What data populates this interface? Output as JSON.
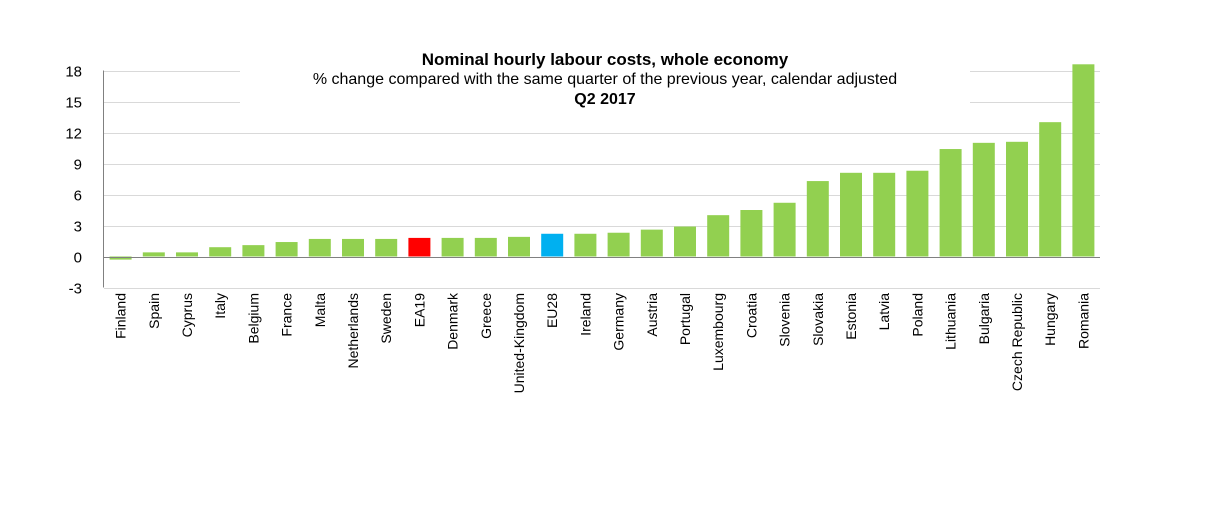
{
  "chart_data": {
    "type": "bar",
    "title": "Nominal hourly labour costs, whole economy",
    "subtitle": "% change compared with the same quarter of the previous year, calendar adjusted",
    "period": "Q2 2017",
    "xlabel": "",
    "ylabel": "",
    "ylim": [
      -3,
      18
    ],
    "yticks": [
      "18",
      "15",
      "12",
      "9",
      "6",
      "3",
      "0",
      "-3"
    ],
    "grid": true,
    "legend": "none",
    "categories": [
      "Finland",
      "Spain",
      "Cyprus",
      "Italy",
      "Belgium",
      "France",
      "Malta",
      "Netherlands",
      "Sweden",
      "EA19",
      "Denmark",
      "Greece",
      "United-Kingdom",
      "EU28",
      "Ireland",
      "Germany",
      "Austria",
      "Portugal",
      "Luxembourg",
      "Croatia",
      "Slovenia",
      "Slovakia",
      "Estonia",
      "Latvia",
      "Poland",
      "Lithuania",
      "Bulgaria",
      "Czech Republic",
      "Hungary",
      "Romania"
    ],
    "values": [
      -0.3,
      0.4,
      0.4,
      0.9,
      1.1,
      1.4,
      1.7,
      1.7,
      1.7,
      1.8,
      1.8,
      1.8,
      1.9,
      2.2,
      2.2,
      2.3,
      2.6,
      2.9,
      4.0,
      4.5,
      5.2,
      7.3,
      8.1,
      8.1,
      8.3,
      10.4,
      11.0,
      11.1,
      13.0,
      18.6
    ],
    "colors": {
      "default": "#92d050",
      "EA19": "#ff0000",
      "EU28": "#00b0f0",
      "grid": "#d9d9d9",
      "axis": "#808080"
    }
  }
}
